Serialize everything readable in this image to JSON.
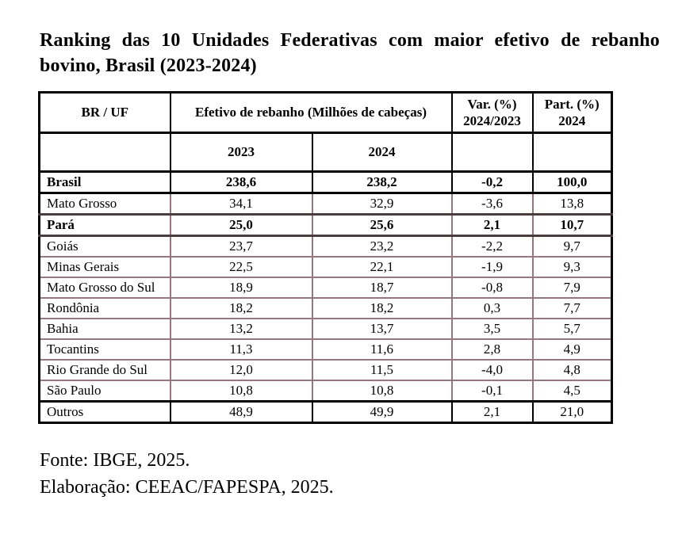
{
  "title": "Ranking das 10 Unidades Federativas com maior efetivo de rebanho bovino, Brasil (2023-2024)",
  "table": {
    "header": {
      "br_uf": "BR / UF",
      "efetivo": "Efetivo de rebanho (Milhões de cabeças)",
      "var_line1": "Var. (%)",
      "var_line2": "2024/2023",
      "part_line1": "Part. (%)",
      "part_line2": "2024",
      "sub_2023": "2023",
      "sub_2024": "2024"
    },
    "rows": [
      {
        "name": "Brasil",
        "v2023": "238,6",
        "v2024": "238,2",
        "var": "-0,2",
        "part": "100,0",
        "bold": true,
        "style": "black"
      },
      {
        "name": "Mato Grosso",
        "v2023": "34,1",
        "v2024": "32,9",
        "var": "-3,6",
        "part": "13,8",
        "bold": false,
        "style": "plain"
      },
      {
        "name": "Pará",
        "v2023": "25,0",
        "v2024": "25,6",
        "var": "2,1",
        "part": "10,7",
        "bold": true,
        "style": "para"
      },
      {
        "name": "Goiás",
        "v2023": "23,7",
        "v2024": "23,2",
        "var": "-2,2",
        "part": "9,7",
        "bold": false,
        "style": "plain"
      },
      {
        "name": "Minas Gerais",
        "v2023": "22,5",
        "v2024": "22,1",
        "var": "-1,9",
        "part": "9,3",
        "bold": false,
        "style": "plain"
      },
      {
        "name": "Mato Grosso do Sul",
        "v2023": "18,9",
        "v2024": "18,7",
        "var": "-0,8",
        "part": "7,9",
        "bold": false,
        "style": "plain"
      },
      {
        "name": "Rondônia",
        "v2023": "18,2",
        "v2024": "18,2",
        "var": "0,3",
        "part": "7,7",
        "bold": false,
        "style": "plain"
      },
      {
        "name": "Bahia",
        "v2023": "13,2",
        "v2024": "13,7",
        "var": "3,5",
        "part": "5,7",
        "bold": false,
        "style": "plain"
      },
      {
        "name": "Tocantins",
        "v2023": "11,3",
        "v2024": "11,6",
        "var": "2,8",
        "part": "4,9",
        "bold": false,
        "style": "plain"
      },
      {
        "name": "Rio Grande do Sul",
        "v2023": "12,0",
        "v2024": "11,5",
        "var": "-4,0",
        "part": "4,8",
        "bold": false,
        "style": "plain"
      },
      {
        "name": "São Paulo",
        "v2023": "10,8",
        "v2024": "10,8",
        "var": "-0,1",
        "part": "4,5",
        "bold": false,
        "style": "plain"
      },
      {
        "name": "Outros",
        "v2023": "48,9",
        "v2024": "49,9",
        "var": "2,1",
        "part": "21,0",
        "bold": false,
        "style": "black"
      }
    ]
  },
  "footer": {
    "source": "Fonte: IBGE, 2025.",
    "elaboration": "Elaboração: CEEAC/FAPESPA, 2025."
  },
  "colors": {
    "grid_body": "#97777d",
    "grid_strong": "#000000",
    "grid_para": "#4a3d40",
    "text": "#000000",
    "background": "#ffffff"
  }
}
